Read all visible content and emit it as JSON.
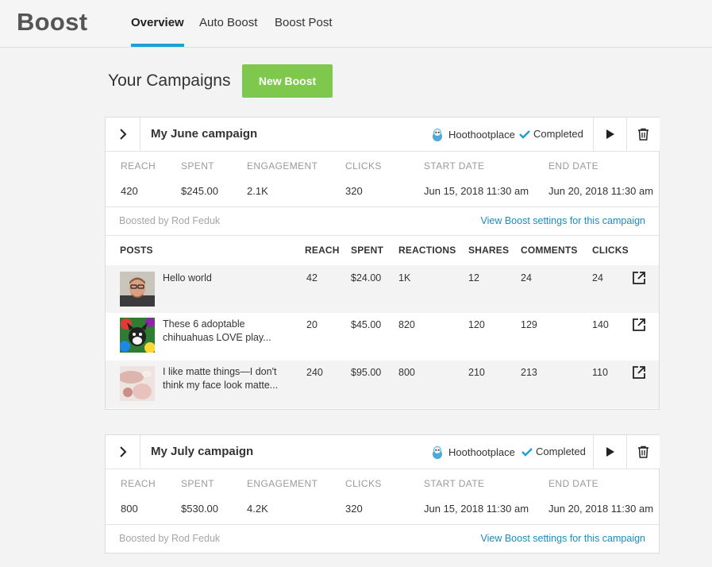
{
  "app": {
    "brand": "Boost",
    "tabs": [
      {
        "label": "Overview",
        "active": true
      },
      {
        "label": "Auto Boost",
        "active": false
      },
      {
        "label": "Boost Post",
        "active": false
      }
    ]
  },
  "main": {
    "title": "Your Campaigns",
    "new_boost_label": "New Boost"
  },
  "stat_labels": {
    "reach": "REACH",
    "spent": "SPENT",
    "engagement": "ENGAGEMENT",
    "clicks": "CLICKS",
    "start_date": "START DATE",
    "end_date": "END DATE"
  },
  "post_headers": {
    "posts": "POSTS",
    "reach": "REACH",
    "spent": "SPENT",
    "reactions": "REACTIONS",
    "shares": "SHARES",
    "comments": "COMMENTS",
    "clicks": "CLICKS"
  },
  "campaigns": [
    {
      "name": "My June campaign",
      "account": "Hoothootplace",
      "status": "Completed",
      "stats": {
        "reach": "420",
        "spent": "$245.00",
        "engagement": "2.1K",
        "clicks": "320",
        "start_date": "Jun 15, 2018 11:30 am",
        "end_date": "Jun 20, 2018 11:30 am"
      },
      "boosted_by": "Boosted by Rod Feduk",
      "view_settings": "View Boost settings for this campaign",
      "posts": [
        {
          "text": "Hello world",
          "reach": "42",
          "spent": "$24.00",
          "reactions": "1K",
          "shares": "12",
          "comments": "24",
          "clicks": "24"
        },
        {
          "text": "These 6 adoptable chihuahuas LOVE play...",
          "reach": "20",
          "spent": "$45.00",
          "reactions": "820",
          "shares": "120",
          "comments": "129",
          "clicks": "140"
        },
        {
          "text": "I like matte things—I don't think my face look matte...",
          "reach": "240",
          "spent": "$95.00",
          "reactions": "800",
          "shares": "210",
          "comments": "213",
          "clicks": "110"
        }
      ]
    },
    {
      "name": "My July campaign",
      "account": "Hoothootplace",
      "status": "Completed",
      "stats": {
        "reach": "800",
        "spent": "$530.00",
        "engagement": "4.2K",
        "clicks": "320",
        "start_date": "Jun 15, 2018 11:30 am",
        "end_date": "Jun 20, 2018 11:30 am"
      },
      "boosted_by": "Boosted by Rod Feduk",
      "view_settings": "View Boost settings for this campaign"
    }
  ],
  "colors": {
    "accent_tab": "#1aa1d6",
    "new_boost_button": "#7fc84e",
    "link": "#1a8cc0",
    "check": "#1aa1d6"
  },
  "icons": {
    "expand": "chevron-right-icon",
    "play": "play-icon",
    "delete": "trash-icon",
    "status": "checkmark-icon",
    "open_post": "external-link-icon",
    "account": "owl-avatar-icon"
  }
}
